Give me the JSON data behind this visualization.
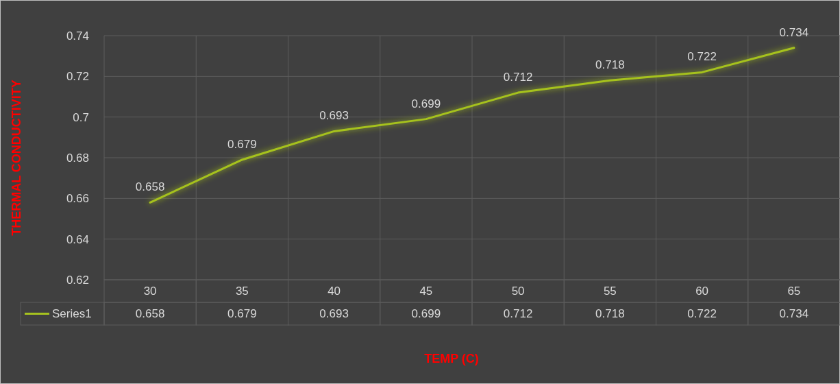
{
  "chart_data": {
    "type": "line",
    "xlabel": "TEMP (C)",
    "ylabel": "THERMAL CONDUCTIVITY",
    "categories": [
      "30",
      "35",
      "40",
      "45",
      "50",
      "55",
      "60",
      "65"
    ],
    "series": [
      {
        "name": "Series1",
        "color": "#a6c21f",
        "values": [
          0.658,
          0.679,
          0.693,
          0.699,
          0.712,
          0.718,
          0.722,
          0.734
        ]
      }
    ],
    "ylim": [
      0.62,
      0.74
    ],
    "yticks": [
      0.62,
      0.64,
      0.66,
      0.68,
      0.7,
      0.72,
      0.74
    ],
    "annotations": [
      "0.658",
      "0.679",
      "0.693",
      "0.699",
      "0.712",
      "0.718",
      "0.722",
      "0.734"
    ],
    "grid": true,
    "data_labels": true,
    "legend": "bottom left",
    "marker": "none",
    "line_style": "solid"
  }
}
